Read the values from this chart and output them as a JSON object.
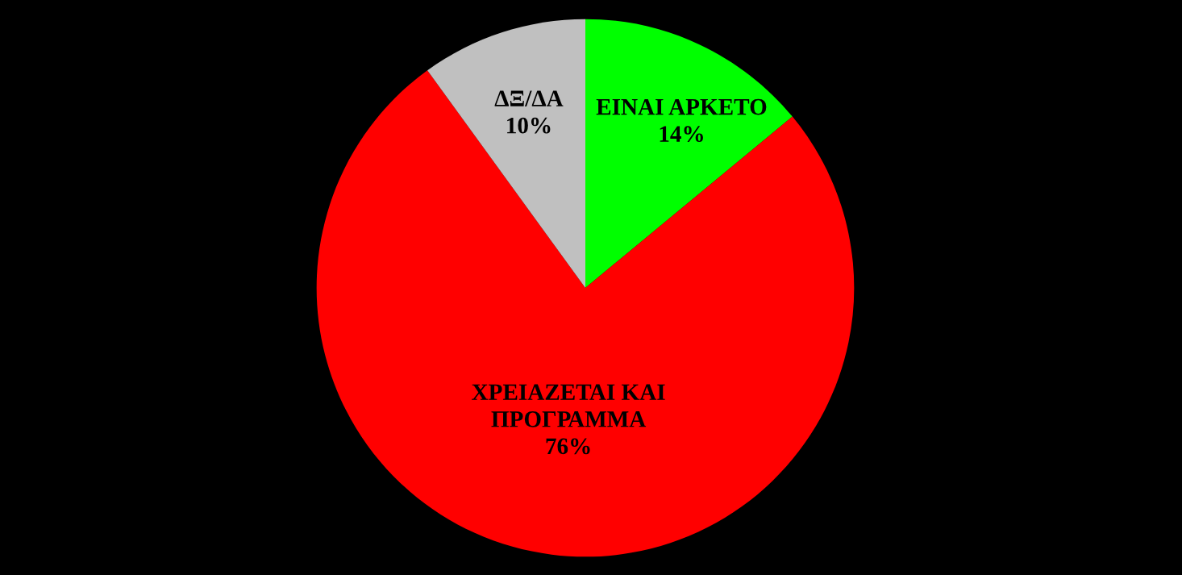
{
  "chart_data": {
    "type": "pie",
    "categories": [
      "ΕΙΝΑΙ ΑΡΚΕΤΟ",
      "ΧΡΕΙΑΖΕΤΑΙ ΚΑΙ ΠΡΟΓΡΑΜΜΑ",
      "ΔΞ/ΔΑ"
    ],
    "values": [
      14,
      76,
      10
    ],
    "value_labels": [
      "14%",
      "76%",
      "10%"
    ],
    "colors": [
      "#00ff00",
      "#ff0000",
      "#c0c0c0"
    ],
    "legend": false
  }
}
